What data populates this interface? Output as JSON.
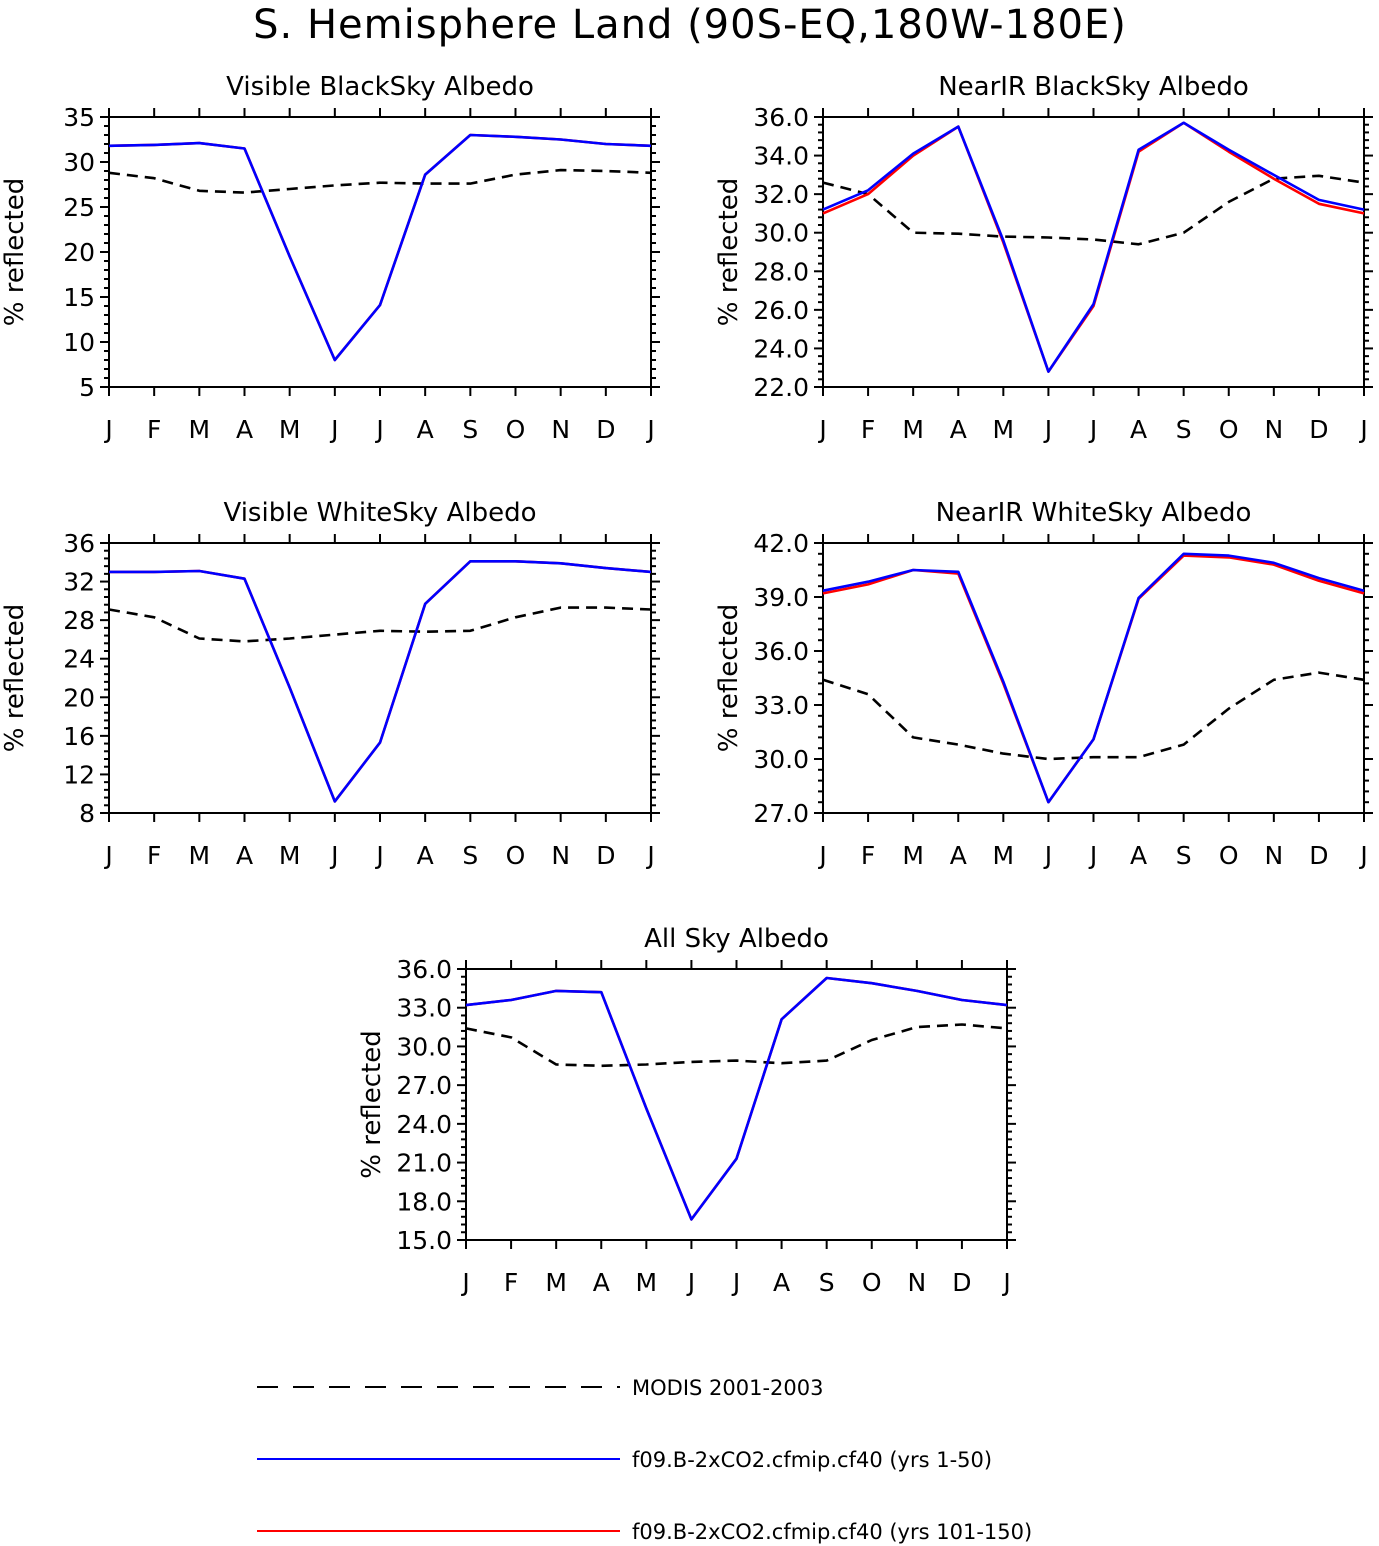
{
  "figure": {
    "title": "S. Hemisphere Land (90S-EQ,180W-180E)"
  },
  "legend": [
    {
      "label": "MODIS 2001-2003",
      "color": "#000000",
      "style": "dashed"
    },
    {
      "label": "f09.B-2xCO2.cfmip.cf40 (yrs 1-50)",
      "color": "#0000ff",
      "style": "solid"
    },
    {
      "label": "f09.B-2xCO2.cfmip.cf40 (yrs 101-150)",
      "color": "#ff0000",
      "style": "solid"
    }
  ],
  "chart_data": [
    {
      "type": "line",
      "title": "Visible BlackSky Albedo",
      "ylabel": "% reflected",
      "xlabel": "",
      "categories": [
        "J",
        "F",
        "M",
        "A",
        "M",
        "J",
        "J",
        "A",
        "S",
        "O",
        "N",
        "D",
        "J"
      ],
      "ylim": [
        5,
        35
      ],
      "yticks": [
        "5",
        "10",
        "15",
        "20",
        "25",
        "30",
        "35"
      ],
      "series": [
        {
          "name": "MODIS 2001-2003",
          "color": "#000000",
          "dashed": true,
          "values": [
            28.8,
            28.2,
            26.8,
            26.6,
            27.0,
            27.4,
            27.7,
            27.6,
            27.6,
            28.6,
            29.1,
            29.0,
            28.8
          ]
        },
        {
          "name": "f09.B-2xCO2.cfmip.cf40 (yrs 101-150)",
          "color": "#ff0000",
          "dashed": false,
          "values": [
            31.8,
            31.9,
            32.1,
            31.5,
            19.5,
            8.0,
            14.1,
            28.6,
            33.0,
            32.8,
            32.5,
            32.0,
            31.8
          ]
        },
        {
          "name": "f09.B-2xCO2.cfmip.cf40 (yrs 1-50)",
          "color": "#0000ff",
          "dashed": false,
          "values": [
            31.8,
            31.9,
            32.1,
            31.5,
            19.5,
            8.0,
            14.1,
            28.6,
            33.0,
            32.8,
            32.5,
            32.0,
            31.8
          ]
        }
      ]
    },
    {
      "type": "line",
      "title": "NearIR BlackSky Albedo",
      "ylabel": "% reflected",
      "xlabel": "",
      "categories": [
        "J",
        "F",
        "M",
        "A",
        "M",
        "J",
        "J",
        "A",
        "S",
        "O",
        "N",
        "D",
        "J"
      ],
      "ylim": [
        22.0,
        36.0
      ],
      "yticks": [
        "22.0",
        "24.0",
        "26.0",
        "28.0",
        "30.0",
        "32.0",
        "34.0",
        "36.0"
      ],
      "series": [
        {
          "name": "MODIS 2001-2003",
          "color": "#000000",
          "dashed": true,
          "values": [
            32.6,
            32.0,
            30.0,
            29.95,
            29.8,
            29.75,
            29.65,
            29.4,
            30.0,
            31.6,
            32.8,
            32.95,
            32.6
          ]
        },
        {
          "name": "f09.B-2xCO2.cfmip.cf40 (yrs 101-150)",
          "color": "#ff0000",
          "dashed": false,
          "values": [
            31.0,
            32.0,
            34.0,
            35.5,
            29.5,
            22.8,
            26.2,
            34.2,
            35.7,
            34.2,
            32.8,
            31.5,
            31.0
          ]
        },
        {
          "name": "f09.B-2xCO2.cfmip.cf40 (yrs 1-50)",
          "color": "#0000ff",
          "dashed": false,
          "values": [
            31.2,
            32.2,
            34.1,
            35.5,
            29.6,
            22.8,
            26.3,
            34.3,
            35.7,
            34.3,
            33.0,
            31.7,
            31.2
          ]
        }
      ]
    },
    {
      "type": "line",
      "title": "Visible WhiteSky Albedo",
      "ylabel": "% reflected",
      "xlabel": "",
      "categories": [
        "J",
        "F",
        "M",
        "A",
        "M",
        "J",
        "J",
        "A",
        "S",
        "O",
        "N",
        "D",
        "J"
      ],
      "ylim": [
        8,
        36
      ],
      "yticks": [
        "8",
        "12",
        "16",
        "20",
        "24",
        "28",
        "32",
        "36"
      ],
      "series": [
        {
          "name": "MODIS 2001-2003",
          "color": "#000000",
          "dashed": true,
          "values": [
            29.1,
            28.3,
            26.1,
            25.8,
            26.1,
            26.5,
            26.9,
            26.8,
            26.9,
            28.3,
            29.3,
            29.3,
            29.1
          ]
        },
        {
          "name": "f09.B-2xCO2.cfmip.cf40 (yrs 101-150)",
          "color": "#ff0000",
          "dashed": false,
          "values": [
            33.0,
            33.0,
            33.1,
            32.3,
            21.0,
            9.2,
            15.3,
            29.7,
            34.1,
            34.1,
            33.9,
            33.4,
            33.0
          ]
        },
        {
          "name": "f09.B-2xCO2.cfmip.cf40 (yrs 1-50)",
          "color": "#0000ff",
          "dashed": false,
          "values": [
            33.0,
            33.0,
            33.1,
            32.3,
            21.0,
            9.2,
            15.3,
            29.7,
            34.1,
            34.1,
            33.9,
            33.4,
            33.0
          ]
        }
      ]
    },
    {
      "type": "line",
      "title": "NearIR WhiteSky Albedo",
      "ylabel": "% reflected",
      "xlabel": "",
      "categories": [
        "J",
        "F",
        "M",
        "A",
        "M",
        "J",
        "J",
        "A",
        "S",
        "O",
        "N",
        "D",
        "J"
      ],
      "ylim": [
        27.0,
        42.0
      ],
      "yticks": [
        "27.0",
        "30.0",
        "33.0",
        "36.0",
        "39.0",
        "42.0"
      ],
      "series": [
        {
          "name": "MODIS 2001-2003",
          "color": "#000000",
          "dashed": true,
          "values": [
            34.4,
            33.6,
            31.2,
            30.8,
            30.3,
            30.0,
            30.1,
            30.1,
            30.8,
            32.8,
            34.4,
            34.8,
            34.4
          ]
        },
        {
          "name": "f09.B-2xCO2.cfmip.cf40 (yrs 101-150)",
          "color": "#ff0000",
          "dashed": false,
          "values": [
            39.2,
            39.7,
            40.5,
            40.3,
            34.2,
            27.6,
            31.1,
            38.9,
            41.3,
            41.2,
            40.8,
            39.9,
            39.2
          ]
        },
        {
          "name": "f09.B-2xCO2.cfmip.cf40 (yrs 1-50)",
          "color": "#0000ff",
          "dashed": false,
          "values": [
            39.35,
            39.85,
            40.5,
            40.4,
            34.3,
            27.6,
            31.1,
            38.95,
            41.4,
            41.3,
            40.9,
            40.05,
            39.35
          ]
        }
      ]
    },
    {
      "type": "line",
      "title": "All Sky Albedo",
      "ylabel": "% reflected",
      "xlabel": "",
      "categories": [
        "J",
        "F",
        "M",
        "A",
        "M",
        "J",
        "J",
        "A",
        "S",
        "O",
        "N",
        "D",
        "J"
      ],
      "ylim": [
        15.0,
        36.0
      ],
      "yticks": [
        "15.0",
        "18.0",
        "21.0",
        "24.0",
        "27.0",
        "30.0",
        "33.0",
        "36.0"
      ],
      "series": [
        {
          "name": "MODIS 2001-2003",
          "color": "#000000",
          "dashed": true,
          "values": [
            31.4,
            30.7,
            28.6,
            28.5,
            28.6,
            28.8,
            28.9,
            28.7,
            28.9,
            30.5,
            31.5,
            31.7,
            31.4
          ]
        },
        {
          "name": "f09.B-2xCO2.cfmip.cf40 (yrs 101-150)",
          "color": "#ff0000",
          "dashed": false,
          "values": [
            33.2,
            33.6,
            34.3,
            34.2,
            25.2,
            16.6,
            21.3,
            32.1,
            35.3,
            34.9,
            34.3,
            33.6,
            33.2
          ]
        },
        {
          "name": "f09.B-2xCO2.cfmip.cf40 (yrs 1-50)",
          "color": "#0000ff",
          "dashed": false,
          "values": [
            33.2,
            33.6,
            34.3,
            34.2,
            25.2,
            16.6,
            21.3,
            32.1,
            35.3,
            34.9,
            34.3,
            33.6,
            33.2
          ]
        }
      ]
    }
  ]
}
